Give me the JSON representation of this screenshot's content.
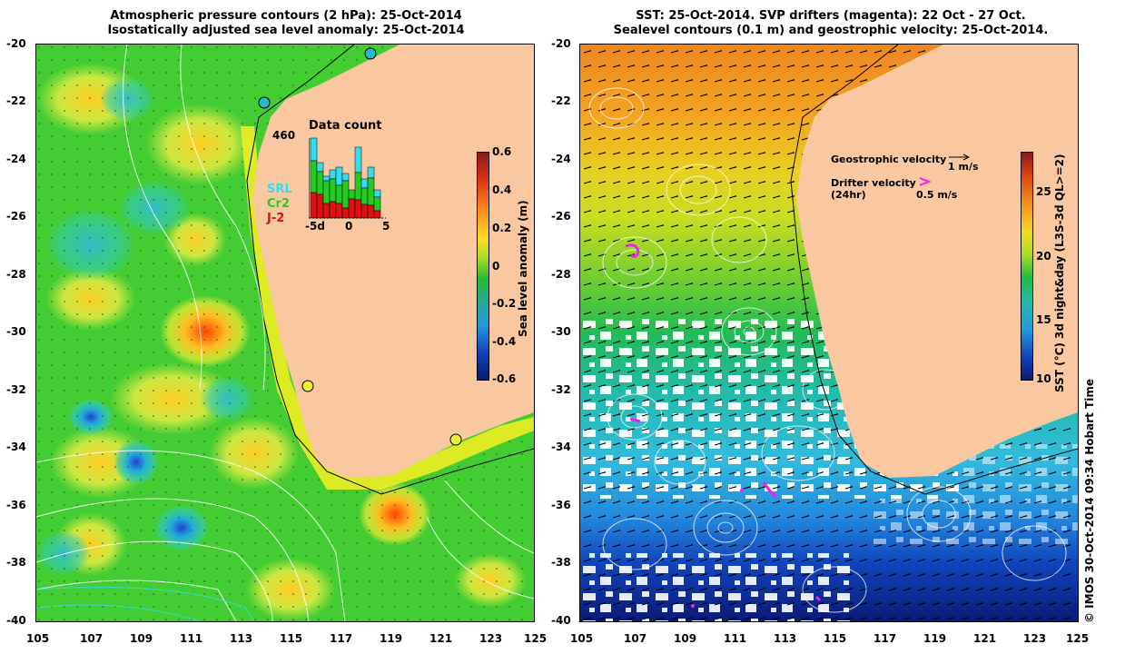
{
  "left_panel": {
    "title_line1": "Atmospheric pressure contours (2 hPa): 25-Oct-2014",
    "title_line2": "Isostatically adjusted sea level anomaly: 25-Oct-2014",
    "colorbar_label": "Sea level anomaly (m)",
    "colorbar_ticks": [
      "0.6",
      "0.4",
      "0.2",
      "0",
      "-0.2",
      "-0.4",
      "-0.6"
    ],
    "inset": {
      "title": "Data count",
      "max_label": "460",
      "legend": [
        {
          "label": "SRL",
          "color": "#33ddee"
        },
        {
          "label": "Cr2",
          "color": "#22cc22"
        },
        {
          "label": "J-2",
          "color": "#dd1111"
        }
      ],
      "x_ticks": [
        "-5d",
        "0",
        "5"
      ]
    }
  },
  "right_panel": {
    "title_line1": "SST: 25-Oct-2014. SVP drifters (magenta): 22 Oct - 27 Oct.",
    "title_line2": "Sealevel contours (0.1 m) and geostrophic velocity: 25-Oct-2014.",
    "colorbar_label": "SST (°C) 3d night&day (L3S-3d QL>=2)",
    "colorbar_ticks": [
      "25",
      "20",
      "15",
      "10"
    ],
    "geostrophic_label": "Geostrophic velocity",
    "geostrophic_scale": "1 m/s",
    "drifter_label_line1": "Drifter velocity",
    "drifter_label_line2": "(24hr)",
    "drifter_scale": "0.5 m/s"
  },
  "y_ticks": [
    "-20",
    "-22",
    "-24",
    "-26",
    "-28",
    "-30",
    "-32",
    "-34",
    "-36",
    "-38",
    "-40"
  ],
  "x_ticks": [
    "105",
    "107",
    "109",
    "111",
    "113",
    "115",
    "117",
    "119",
    "121",
    "123",
    "125"
  ],
  "credit": "© IMOS 30-Oct-2014 09:34 Hobart Time",
  "colors": {
    "land": "#f9c8a0",
    "sla_base": "#44cc33",
    "accent_drifter": "#ee22ee"
  }
}
